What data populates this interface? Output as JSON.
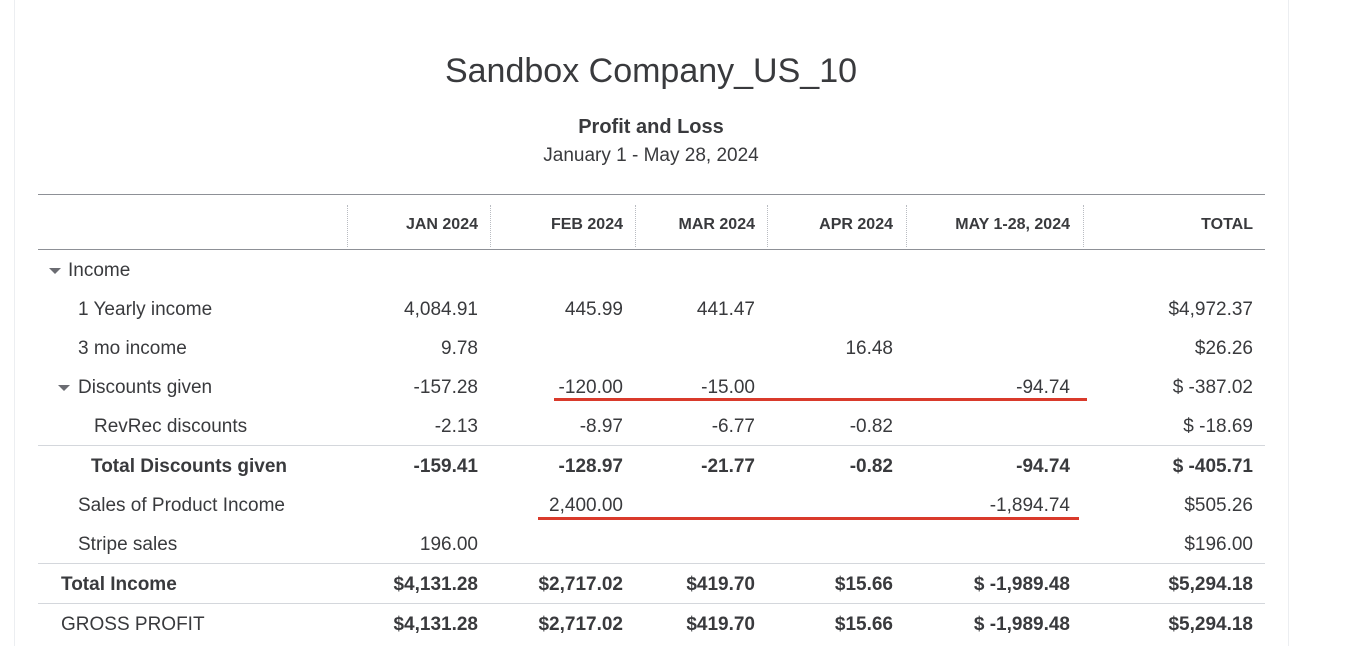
{
  "report": {
    "company": "Sandbox Company_US_10",
    "title": "Profit and Loss",
    "date_range": "January 1 - May 28, 2024"
  },
  "columns": [
    "JAN 2024",
    "FEB 2024",
    "MAR 2024",
    "APR 2024",
    "MAY 1-28, 2024",
    "TOTAL"
  ],
  "rows": [
    {
      "label": "Income",
      "values": [
        "",
        "",
        "",
        "",
        "",
        ""
      ]
    },
    {
      "label": "1 Yearly income",
      "values": [
        "4,084.91",
        "445.99",
        "441.47",
        "",
        "",
        "$4,972.37"
      ]
    },
    {
      "label": "3 mo income",
      "values": [
        "9.78",
        "",
        "",
        "16.48",
        "",
        "$26.26"
      ]
    },
    {
      "label": "Discounts given",
      "values": [
        "-157.28",
        "-120.00",
        "-15.00",
        "",
        "-94.74",
        "$ -387.02"
      ]
    },
    {
      "label": "RevRec discounts",
      "values": [
        "-2.13",
        "-8.97",
        "-6.77",
        "-0.82",
        "",
        "$ -18.69"
      ]
    },
    {
      "label": "Total Discounts given",
      "values": [
        "-159.41",
        "-128.97",
        "-21.77",
        "-0.82",
        "-94.74",
        "$ -405.71"
      ]
    },
    {
      "label": "Sales of Product Income",
      "values": [
        "",
        "2,400.00",
        "",
        "",
        "-1,894.74",
        "$505.26"
      ]
    },
    {
      "label": "Stripe sales",
      "values": [
        "196.00",
        "",
        "",
        "",
        "",
        "$196.00"
      ]
    },
    {
      "label": "Total Income",
      "values": [
        "$4,131.28",
        "$2,717.02",
        "$419.70",
        "$15.66",
        "$ -1,989.48",
        "$5,294.18"
      ]
    },
    {
      "label": "GROSS PROFIT",
      "values": [
        "$4,131.28",
        "$2,717.02",
        "$419.70",
        "$15.66",
        "$ -1,989.48",
        "$5,294.18"
      ]
    }
  ],
  "annotations": {
    "color": "#d93a2b"
  }
}
